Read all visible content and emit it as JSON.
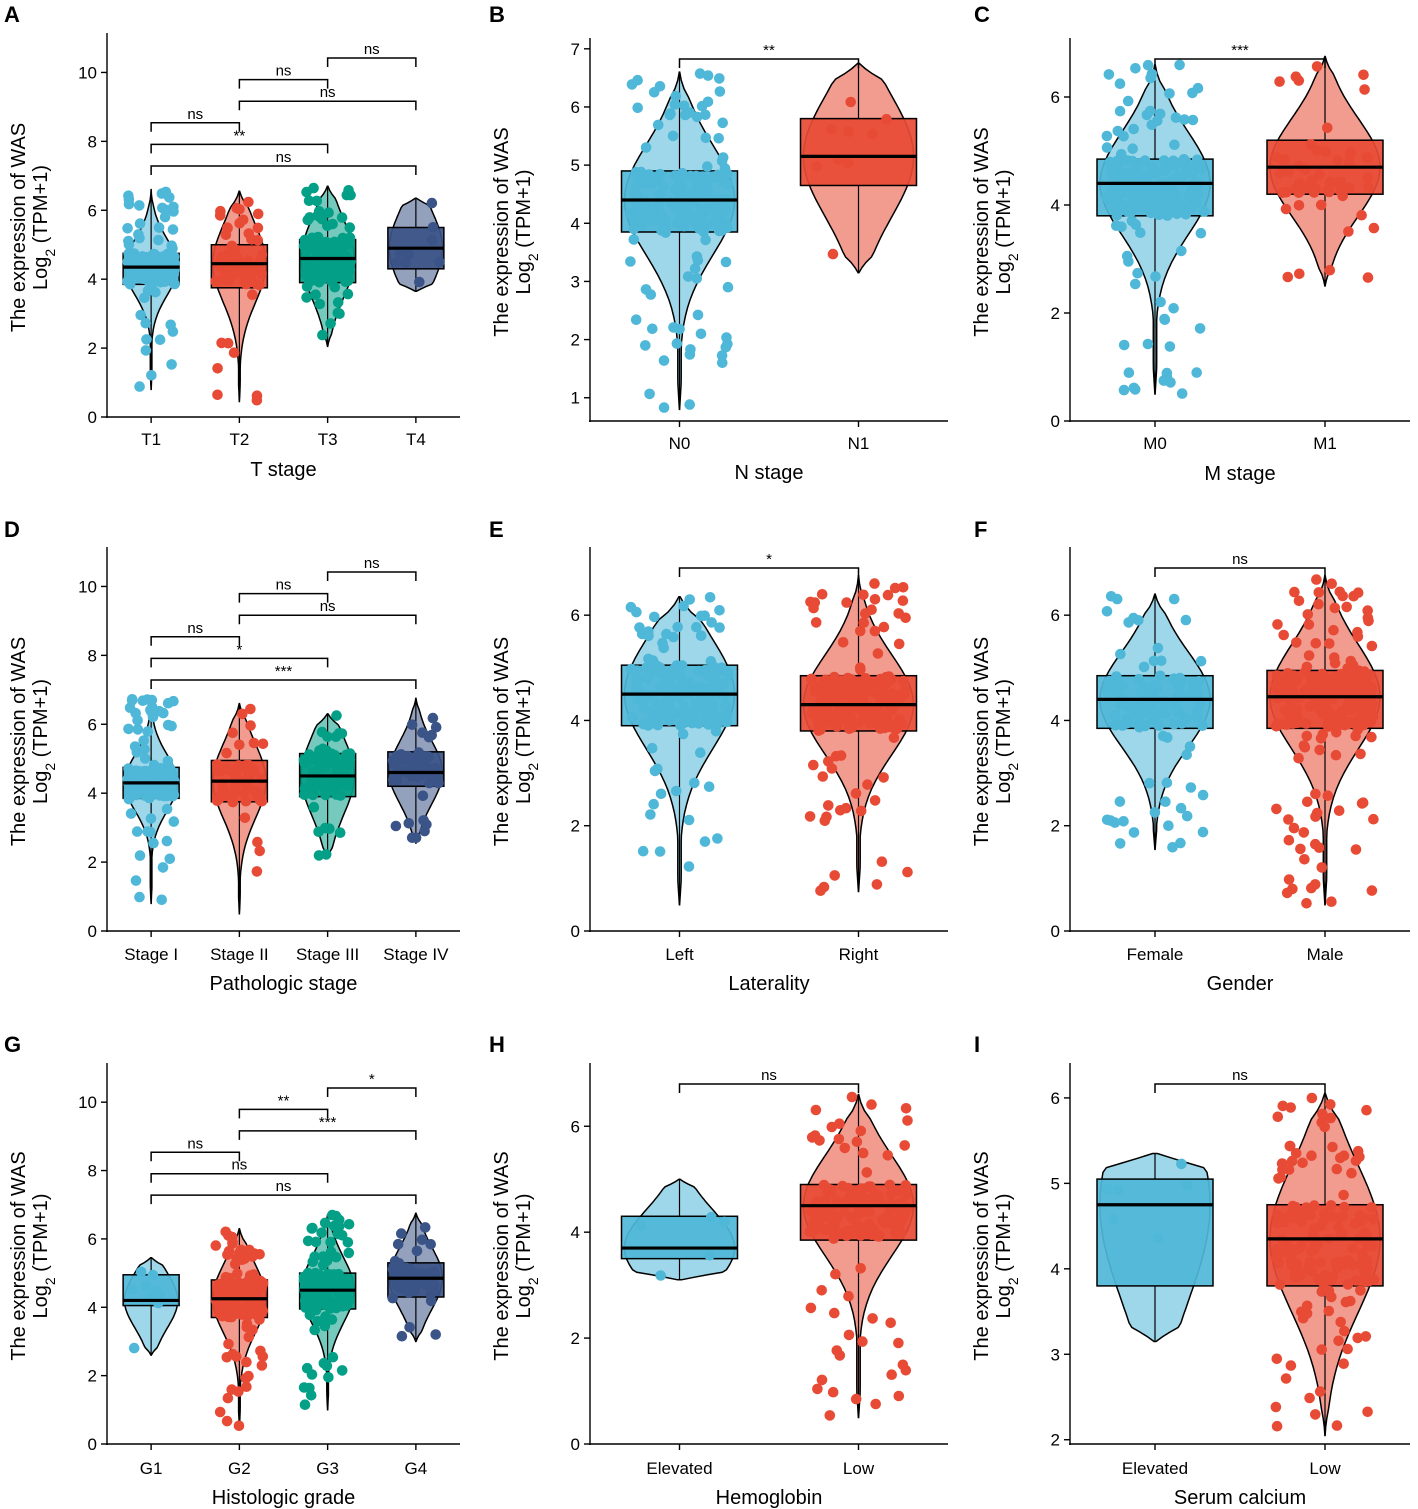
{
  "figure": {
    "colors": {
      "blue": "#4fb7d7",
      "red": "#e84b35",
      "teal": "#049f87",
      "navy": "#3b5487"
    },
    "ylabel_line1": "The expression of WAS",
    "ylabel_line2_base": "Log",
    "ylabel_line2_sub": "2",
    "ylabel_line2_rest": " (TPM+1)"
  },
  "chart_data": [
    {
      "panel": "A",
      "type": "violin-box",
      "xlabel": "T stage",
      "ylim": [
        0,
        11
      ],
      "yticks": [
        0,
        2,
        4,
        6,
        8,
        10
      ],
      "categories": [
        "T1",
        "T2",
        "T3",
        "T4"
      ],
      "colors": [
        "blue",
        "red",
        "teal",
        "navy"
      ],
      "boxes": [
        {
          "q1": 3.85,
          "median": 4.35,
          "q3": 4.75,
          "whisker_low": 0.8,
          "whisker_high": 6.6,
          "n_points": 140
        },
        {
          "q1": 3.75,
          "median": 4.45,
          "q3": 5.0,
          "whisker_low": 0.45,
          "whisker_high": 6.55,
          "n_points": 70
        },
        {
          "q1": 3.9,
          "median": 4.6,
          "q3": 5.15,
          "whisker_low": 2.05,
          "whisker_high": 6.7,
          "n_points": 110
        },
        {
          "q1": 4.3,
          "median": 4.9,
          "q3": 5.5,
          "whisker_low": 3.65,
          "whisker_high": 6.35,
          "n_points": 9
        }
      ],
      "comparisons": [
        {
          "from": 0,
          "to": 1,
          "label": "ns"
        },
        {
          "from": 0,
          "to": 2,
          "label": "**"
        },
        {
          "from": 0,
          "to": 3,
          "label": "ns"
        },
        {
          "from": 1,
          "to": 2,
          "label": "ns"
        },
        {
          "from": 1,
          "to": 3,
          "label": "ns"
        },
        {
          "from": 2,
          "to": 3,
          "label": "ns"
        }
      ]
    },
    {
      "panel": "B",
      "type": "violin-box",
      "xlabel": "N stage",
      "ylim": [
        0.6,
        7.1
      ],
      "yticks": [
        1,
        2,
        3,
        4,
        5,
        6,
        7
      ],
      "categories": [
        "N0",
        "N1"
      ],
      "colors": [
        "blue",
        "red"
      ],
      "boxes": [
        {
          "q1": 3.85,
          "median": 4.4,
          "q3": 4.9,
          "whisker_low": 0.8,
          "whisker_high": 6.6,
          "n_points": 200
        },
        {
          "q1": 4.65,
          "median": 5.15,
          "q3": 5.8,
          "whisker_low": 3.15,
          "whisker_high": 6.75,
          "n_points": 9
        }
      ],
      "comparisons": [
        {
          "from": 0,
          "to": 1,
          "label": "**"
        }
      ]
    },
    {
      "panel": "C",
      "type": "violin-box",
      "xlabel": "M stage",
      "ylim": [
        0,
        7.0
      ],
      "yticks": [
        0,
        2,
        4,
        6
      ],
      "categories": [
        "M0",
        "M1"
      ],
      "colors": [
        "blue",
        "red"
      ],
      "boxes": [
        {
          "q1": 3.8,
          "median": 4.4,
          "q3": 4.85,
          "whisker_low": 0.5,
          "whisker_high": 6.6,
          "n_points": 220
        },
        {
          "q1": 4.2,
          "median": 4.7,
          "q3": 5.2,
          "whisker_low": 2.5,
          "whisker_high": 6.75,
          "n_points": 55
        }
      ],
      "comparisons": [
        {
          "from": 0,
          "to": 1,
          "label": "***"
        }
      ]
    },
    {
      "panel": "D",
      "type": "violin-box",
      "xlabel": "Pathologic stage",
      "ylim": [
        0,
        11
      ],
      "yticks": [
        0,
        2,
        4,
        6,
        8,
        10
      ],
      "categories": [
        "Stage I",
        "Stage II",
        "Stage III",
        "Stage IV"
      ],
      "colors": [
        "blue",
        "red",
        "teal",
        "navy"
      ],
      "boxes": [
        {
          "q1": 3.85,
          "median": 4.3,
          "q3": 4.75,
          "whisker_low": 0.8,
          "whisker_high": 6.75,
          "n_points": 140
        },
        {
          "q1": 3.75,
          "median": 4.35,
          "q3": 4.95,
          "whisker_low": 0.5,
          "whisker_high": 6.6,
          "n_points": 60
        },
        {
          "q1": 3.9,
          "median": 4.5,
          "q3": 5.15,
          "whisker_low": 2.1,
          "whisker_high": 6.3,
          "n_points": 80
        },
        {
          "q1": 4.2,
          "median": 4.6,
          "q3": 5.2,
          "whisker_low": 2.55,
          "whisker_high": 6.75,
          "n_points": 55
        }
      ],
      "comparisons": [
        {
          "from": 0,
          "to": 1,
          "label": "ns"
        },
        {
          "from": 0,
          "to": 2,
          "label": "*"
        },
        {
          "from": 0,
          "to": 3,
          "label": "***"
        },
        {
          "from": 1,
          "to": 2,
          "label": "ns"
        },
        {
          "from": 1,
          "to": 3,
          "label": "ns"
        },
        {
          "from": 2,
          "to": 3,
          "label": "ns"
        }
      ]
    },
    {
      "panel": "E",
      "type": "violin-box",
      "xlabel": "Laterality",
      "ylim": [
        0,
        7.2
      ],
      "yticks": [
        0,
        2,
        4,
        6
      ],
      "categories": [
        "Left",
        "Right"
      ],
      "colors": [
        "blue",
        "red"
      ],
      "boxes": [
        {
          "q1": 3.9,
          "median": 4.5,
          "q3": 5.05,
          "whisker_low": 0.5,
          "whisker_high": 6.35,
          "n_points": 170
        },
        {
          "q1": 3.8,
          "median": 4.3,
          "q3": 4.85,
          "whisker_low": 0.75,
          "whisker_high": 6.75,
          "n_points": 190
        }
      ],
      "comparisons": [
        {
          "from": 0,
          "to": 1,
          "label": "*"
        }
      ]
    },
    {
      "panel": "F",
      "type": "violin-box",
      "xlabel": "Gender",
      "ylim": [
        0,
        7.2
      ],
      "yticks": [
        0,
        2,
        4,
        6
      ],
      "categories": [
        "Female",
        "Male"
      ],
      "colors": [
        "blue",
        "red"
      ],
      "boxes": [
        {
          "q1": 3.85,
          "median": 4.4,
          "q3": 4.85,
          "whisker_low": 1.55,
          "whisker_high": 6.4,
          "n_points": 120
        },
        {
          "q1": 3.85,
          "median": 4.45,
          "q3": 4.95,
          "whisker_low": 0.5,
          "whisker_high": 6.75,
          "n_points": 230
        }
      ],
      "comparisons": [
        {
          "from": 0,
          "to": 1,
          "label": "ns"
        }
      ]
    },
    {
      "panel": "G",
      "type": "violin-box",
      "xlabel": "Histologic grade",
      "ylim": [
        0,
        11
      ],
      "yticks": [
        0,
        2,
        4,
        6,
        8,
        10
      ],
      "categories": [
        "G1",
        "G2",
        "G3",
        "G4"
      ],
      "colors": [
        "blue",
        "red",
        "teal",
        "navy"
      ],
      "boxes": [
        {
          "q1": 4.05,
          "median": 4.2,
          "q3": 4.95,
          "whisker_low": 2.6,
          "whisker_high": 5.45,
          "n_points": 9
        },
        {
          "q1": 3.7,
          "median": 4.25,
          "q3": 4.8,
          "whisker_low": 0.5,
          "whisker_high": 6.3,
          "n_points": 140
        },
        {
          "q1": 3.95,
          "median": 4.5,
          "q3": 5.0,
          "whisker_low": 1.0,
          "whisker_high": 6.7,
          "n_points": 140
        },
        {
          "q1": 4.3,
          "median": 4.85,
          "q3": 5.3,
          "whisker_low": 3.0,
          "whisker_high": 6.75,
          "n_points": 55
        }
      ],
      "comparisons": [
        {
          "from": 0,
          "to": 1,
          "label": "ns"
        },
        {
          "from": 0,
          "to": 2,
          "label": "ns"
        },
        {
          "from": 0,
          "to": 3,
          "label": "ns"
        },
        {
          "from": 1,
          "to": 2,
          "label": "**"
        },
        {
          "from": 1,
          "to": 3,
          "label": "***"
        },
        {
          "from": 2,
          "to": 3,
          "label": "*"
        }
      ]
    },
    {
      "panel": "H",
      "type": "violin-box",
      "xlabel": "Hemoglobin",
      "ylim": [
        0,
        7.1
      ],
      "yticks": [
        0,
        2,
        4,
        6
      ],
      "categories": [
        "Elevated",
        "Low"
      ],
      "colors": [
        "blue",
        "red"
      ],
      "boxes": [
        {
          "q1": 3.5,
          "median": 3.7,
          "q3": 4.3,
          "whisker_low": 3.1,
          "whisker_high": 5.0,
          "n_points": 5
        },
        {
          "q1": 3.85,
          "median": 4.5,
          "q3": 4.9,
          "whisker_low": 0.5,
          "whisker_high": 6.6,
          "n_points": 170
        }
      ],
      "comparisons": [
        {
          "from": 0,
          "to": 1,
          "label": "ns"
        }
      ]
    },
    {
      "panel": "I",
      "type": "violin-box",
      "xlabel": "Serum calcium",
      "ylim": [
        1.95,
        6.35
      ],
      "yticks": [
        2,
        3,
        4,
        5,
        6
      ],
      "categories": [
        "Elevated",
        "Low"
      ],
      "colors": [
        "blue",
        "red"
      ],
      "boxes": [
        {
          "q1": 3.8,
          "median": 4.75,
          "q3": 5.05,
          "whisker_low": 3.15,
          "whisker_high": 5.35,
          "n_points": 6
        },
        {
          "q1": 3.8,
          "median": 4.35,
          "q3": 4.75,
          "whisker_low": 2.05,
          "whisker_high": 6.05,
          "n_points": 170
        }
      ],
      "comparisons": [
        {
          "from": 0,
          "to": 1,
          "label": "ns"
        }
      ]
    }
  ]
}
